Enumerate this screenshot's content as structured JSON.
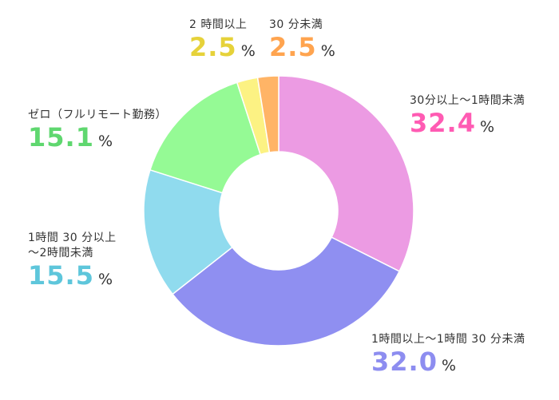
{
  "chart_data": {
    "type": "pie",
    "variant": "donut",
    "unit": "%",
    "slices": [
      {
        "label": "30分以上〜1時間未満",
        "value": 32.4,
        "color": "#ec9be3",
        "label_color": "#ff5bb3"
      },
      {
        "label": "1時間以上〜1時間 30 分未満",
        "value": 32.0,
        "color": "#8f8ff1",
        "label_color": "#8d8df0"
      },
      {
        "label": "1時間 30 分以上\n〜2時間未満",
        "value": 15.5,
        "color": "#90dbee",
        "label_color": "#5ec6db"
      },
      {
        "label": "ゼロ（フルリモート勤務）",
        "value": 15.1,
        "color": "#95fa95",
        "label_color": "#5fd76f"
      },
      {
        "label": "2 時間以上",
        "value": 2.5,
        "color": "#fcf283",
        "label_color": "#e6d23a"
      },
      {
        "label": "30 分未満",
        "value": 2.5,
        "color": "#ffb466",
        "label_color": "#ffa44f"
      }
    ]
  }
}
